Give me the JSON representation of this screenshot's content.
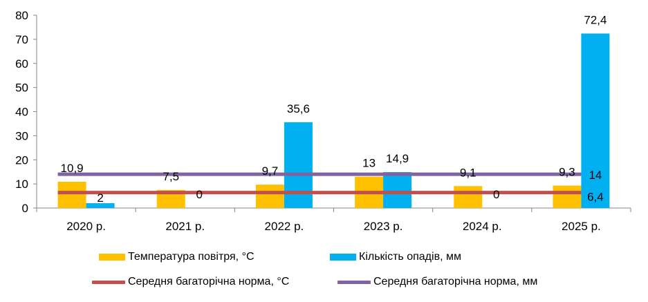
{
  "chart_data": {
    "type": "bar",
    "categories": [
      "2020 р.",
      "2021 р.",
      "2022 р.",
      "2023 р.",
      "2024 р.",
      "2025 р."
    ],
    "series": [
      {
        "name": "Температура повітря, °С",
        "kind": "bar",
        "color": "#FFC000",
        "values": [
          10.9,
          7.5,
          9.7,
          13,
          9.1,
          9.3
        ],
        "labels": [
          "10,9",
          "7,5",
          "9,7",
          "13",
          "9,1",
          "9,3"
        ]
      },
      {
        "name": "Кількість опадів, мм",
        "kind": "bar",
        "color": "#00B0F0",
        "values": [
          2,
          0,
          35.6,
          14.9,
          0,
          72.4
        ],
        "labels": [
          "2",
          "0",
          "35,6",
          "14,9",
          "0",
          "72,4"
        ]
      },
      {
        "name": "Середня багаторічна норма, °С",
        "kind": "line",
        "color": "#C0504D",
        "values": [
          6.4,
          6.4,
          6.4,
          6.4,
          6.4,
          6.4
        ],
        "end_label": "6,4"
      },
      {
        "name": "Середня багаторічна норма, мм",
        "kind": "line",
        "color": "#8064A2",
        "values": [
          14,
          14,
          14,
          14,
          14,
          14
        ],
        "end_label": "14"
      }
    ],
    "yticks": [
      0,
      10,
      20,
      30,
      40,
      50,
      60,
      70,
      80
    ],
    "ylim": [
      0,
      80
    ],
    "grid": false,
    "legend_position": "bottom"
  }
}
